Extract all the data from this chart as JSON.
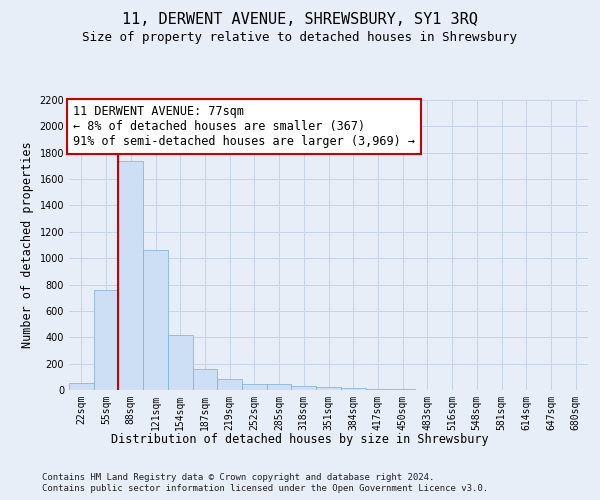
{
  "title": "11, DERWENT AVENUE, SHREWSBURY, SY1 3RQ",
  "subtitle": "Size of property relative to detached houses in Shrewsbury",
  "xlabel": "Distribution of detached houses by size in Shrewsbury",
  "ylabel": "Number of detached properties",
  "footer_line1": "Contains HM Land Registry data © Crown copyright and database right 2024.",
  "footer_line2": "Contains public sector information licensed under the Open Government Licence v3.0.",
  "bin_labels": [
    "22sqm",
    "55sqm",
    "88sqm",
    "121sqm",
    "154sqm",
    "187sqm",
    "219sqm",
    "252sqm",
    "285sqm",
    "318sqm",
    "351sqm",
    "384sqm",
    "417sqm",
    "450sqm",
    "483sqm",
    "516sqm",
    "548sqm",
    "581sqm",
    "614sqm",
    "647sqm",
    "680sqm"
  ],
  "bar_values": [
    55,
    760,
    1740,
    1065,
    420,
    158,
    83,
    48,
    42,
    28,
    20,
    15,
    10,
    5,
    3,
    2,
    1,
    1,
    0,
    0,
    0
  ],
  "bar_color": "#ccdff5",
  "bar_edge_color": "#7aadd4",
  "grid_color": "#c8d4e8",
  "annotation_text_line1": "11 DERWENT AVENUE: 77sqm",
  "annotation_text_line2": "← 8% of detached houses are smaller (367)",
  "annotation_text_line3": "91% of semi-detached houses are larger (3,969) →",
  "annotation_box_color": "white",
  "annotation_box_edge": "#cc0000",
  "red_line_color": "#cc0000",
  "ylim": [
    0,
    2200
  ],
  "yticks": [
    0,
    200,
    400,
    600,
    800,
    1000,
    1200,
    1400,
    1600,
    1800,
    2000,
    2200
  ],
  "bg_color": "#e8eef8",
  "plot_bg_color": "#e8eef8",
  "title_fontsize": 11,
  "subtitle_fontsize": 9,
  "label_fontsize": 8.5,
  "tick_fontsize": 7,
  "footer_fontsize": 6.5,
  "annotation_fontsize": 8.5
}
